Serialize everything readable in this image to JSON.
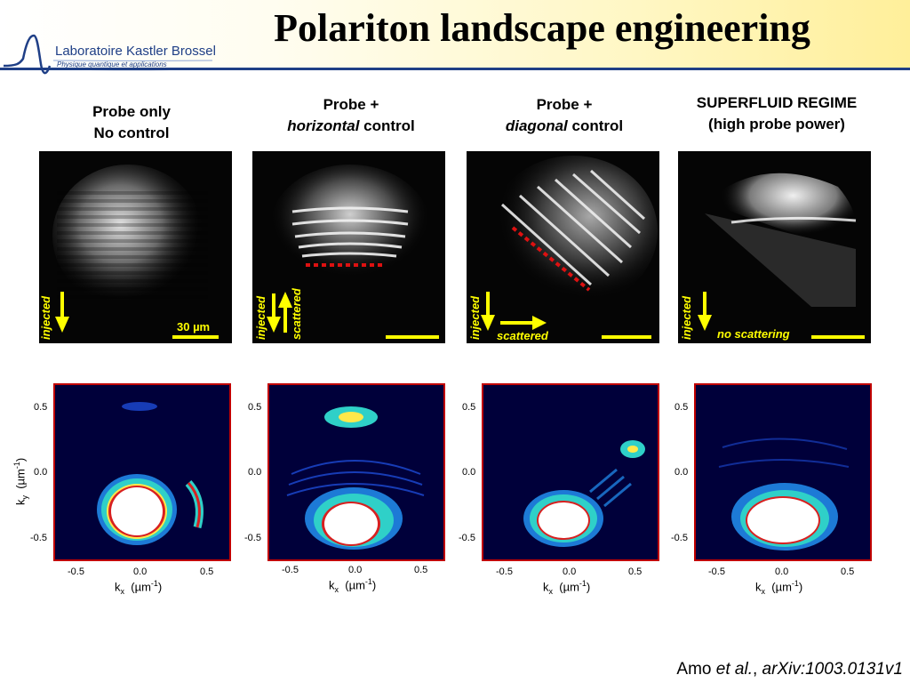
{
  "title": "Polariton landscape engineering",
  "logo": {
    "name": "Laboratoire Kastler Brossel",
    "subtitle": "Physique quantique et applications"
  },
  "columns": [
    {
      "line1": "Probe only",
      "line2_em": "",
      "line2": "No control"
    },
    {
      "line1": "Probe +",
      "line2_em": "horizontal",
      "line2": " control"
    },
    {
      "line1": "Probe +",
      "line2_em": "diagonal",
      "line2": " control"
    },
    {
      "line1": "SUPERFLUID REGIME",
      "line2_em": "",
      "line2": "(high probe power)"
    }
  ],
  "annotations": {
    "injected": "injected",
    "scattered": "scattered",
    "no_scattering": "no scattering",
    "scale_bar": "30 µm"
  },
  "axes": {
    "x_ticks": [
      "-0.5",
      "0.0",
      "0.5"
    ],
    "y_ticks": [
      "0.5",
      "0.0",
      "-0.5"
    ],
    "xlabel": "k",
    "xsub": "x",
    "ylabel": "k",
    "ysub": "y",
    "unit_open": "  (",
    "unit_mu": "µ",
    "unit_m": "m",
    "unit_exp": "-1",
    "unit_close": ")"
  },
  "citation": {
    "author": "Amo ",
    "etal": "et al.",
    "sep": ", ",
    "ref": "arXiv:1003.0131v1"
  },
  "colors": {
    "accent_red": "#c00000",
    "annotation_yellow": "#ffff00",
    "brand_blue": "#1f3f86"
  }
}
